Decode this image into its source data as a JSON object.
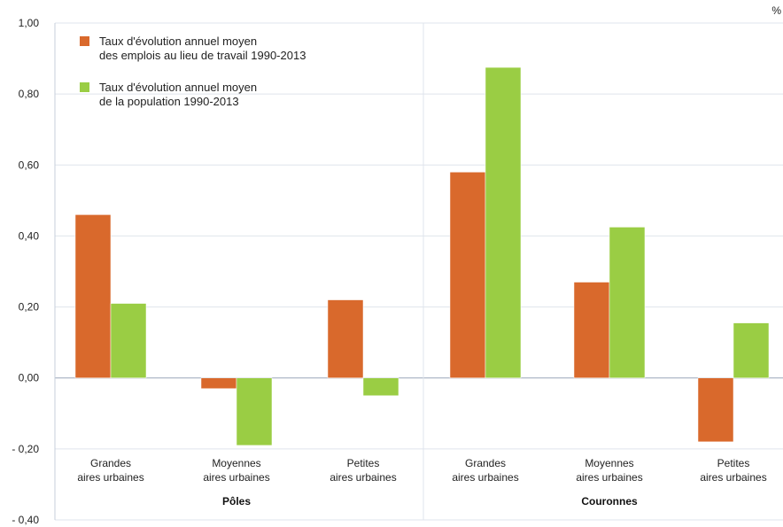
{
  "chart_data": {
    "type": "bar",
    "unit": "%",
    "ylim": [
      -0.4,
      1.0
    ],
    "yticks": [
      {
        "v": 1.0,
        "label": "1,00"
      },
      {
        "v": 0.8,
        "label": "0,80"
      },
      {
        "v": 0.6,
        "label": "0,60"
      },
      {
        "v": 0.4,
        "label": "0,40"
      },
      {
        "v": 0.2,
        "label": "0,20"
      },
      {
        "v": 0.0,
        "label": "0,00"
      },
      {
        "v": -0.2,
        "label": "- 0,20"
      },
      {
        "v": -0.4,
        "label": "- 0,40"
      }
    ],
    "grid": true,
    "legend_position": "top-left",
    "categories": [
      [
        "Grandes",
        "aires urbaines"
      ],
      [
        "Moyennes",
        "aires urbaines"
      ],
      [
        "Petites",
        "aires urbaines"
      ],
      [
        "Grandes",
        "aires urbaines"
      ],
      [
        "Moyennes",
        "aires urbaines"
      ],
      [
        "Petites",
        "aires urbaines"
      ]
    ],
    "groups": [
      {
        "label": "Pôles",
        "categories": [
          0,
          1,
          2
        ]
      },
      {
        "label": "Couronnes",
        "categories": [
          3,
          4,
          5
        ]
      }
    ],
    "series": [
      {
        "name": [
          "Taux d'évolution annuel moyen",
          "des emplois au lieu de travail 1990-2013"
        ],
        "color": "#d9692c",
        "values": [
          0.46,
          -0.03,
          0.22,
          0.58,
          0.27,
          -0.18
        ]
      },
      {
        "name": [
          "Taux d'évolution annuel moyen",
          "de la population 1990-2013"
        ],
        "color": "#9acd44",
        "values": [
          0.21,
          -0.19,
          -0.05,
          0.875,
          0.425,
          0.155
        ]
      }
    ]
  }
}
